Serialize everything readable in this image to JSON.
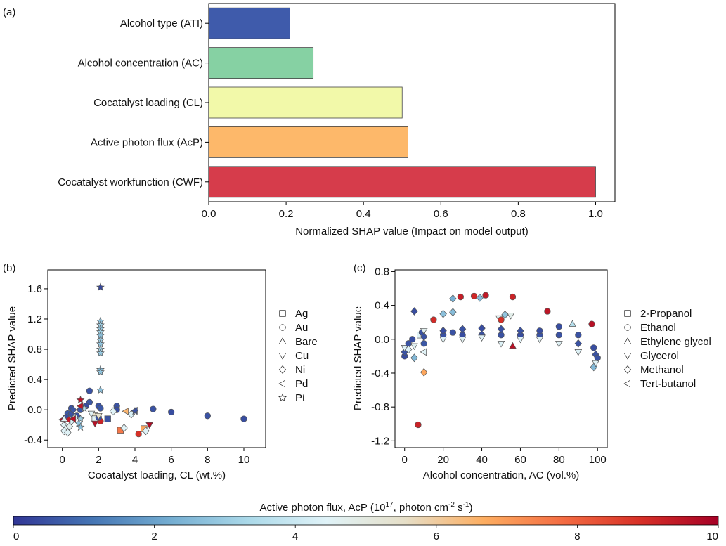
{
  "chart_data": [
    {
      "panel": "(a)",
      "type": "bar",
      "orientation": "horizontal",
      "categories": [
        "Alcohol type (ATI)",
        "Alcohol concentration (AC)",
        "Cocatalyst loading (CL)",
        "Active photon flux (AcP)",
        "Cocatalyst workfunction (CWF)"
      ],
      "values": [
        0.21,
        0.27,
        0.5,
        0.515,
        1.0
      ],
      "colors": [
        "#3f5bab",
        "#86d1a3",
        "#f2f9a9",
        "#fdb86a",
        "#d63c4b"
      ],
      "xlabel": "Normalized SHAP value (Impact on model output)",
      "ylabel": "",
      "xlim": [
        0,
        1.05
      ],
      "xticks": [
        "0.0",
        "0.2",
        "0.4",
        "0.6",
        "0.8",
        "1.0"
      ],
      "grid": false
    },
    {
      "panel": "(b)",
      "type": "scatter",
      "xlabel": "Cocatalyst loading, CL (wt.%)",
      "ylabel": "Predicted SHAP value",
      "xlim": [
        -0.8,
        11.2
      ],
      "ylim": [
        -0.5,
        1.85
      ],
      "xticks": [
        "0",
        "2",
        "4",
        "6",
        "8",
        "10"
      ],
      "yticks": [
        "-0.4",
        "0.0",
        "0.4",
        "0.8",
        "1.2",
        "1.6"
      ],
      "legend_placement": "outside-right",
      "legend": [
        {
          "label": "Ag",
          "shape": "square"
        },
        {
          "label": "Au",
          "shape": "circle"
        },
        {
          "label": "Bare",
          "shape": "triangle-up"
        },
        {
          "label": "Cu",
          "shape": "triangle-down"
        },
        {
          "label": "Ni",
          "shape": "diamond"
        },
        {
          "label": "Pd",
          "shape": "triangle-left"
        },
        {
          "label": "Pt",
          "shape": "star"
        }
      ],
      "points": [
        {
          "x": 2.1,
          "y": 1.62,
          "shape": "star",
          "acp": 0.3
        },
        {
          "x": 2.1,
          "y": 1.17,
          "shape": "star",
          "acp": 2.8
        },
        {
          "x": 2.1,
          "y": 1.12,
          "shape": "star",
          "acp": 3.0
        },
        {
          "x": 2.1,
          "y": 1.07,
          "shape": "star",
          "acp": 2.9
        },
        {
          "x": 2.1,
          "y": 1.03,
          "shape": "star",
          "acp": 3.1
        },
        {
          "x": 2.1,
          "y": 0.98,
          "shape": "star",
          "acp": 2.7
        },
        {
          "x": 2.1,
          "y": 0.92,
          "shape": "star",
          "acp": 3.0
        },
        {
          "x": 2.1,
          "y": 0.87,
          "shape": "star",
          "acp": 2.8
        },
        {
          "x": 2.1,
          "y": 0.8,
          "shape": "star",
          "acp": 3.2
        },
        {
          "x": 2.1,
          "y": 0.75,
          "shape": "star",
          "acp": 2.9
        },
        {
          "x": 2.1,
          "y": 0.53,
          "shape": "star",
          "acp": 2.6
        },
        {
          "x": 2.1,
          "y": 0.5,
          "shape": "star",
          "acp": 2.8
        },
        {
          "x": 2.1,
          "y": 0.26,
          "shape": "star",
          "acp": 2.7
        },
        {
          "x": 1.5,
          "y": 0.25,
          "shape": "circle",
          "acp": 0.5
        },
        {
          "x": 1.0,
          "y": 0.13,
          "shape": "star",
          "acp": 9.6
        },
        {
          "x": 1.5,
          "y": 0.1,
          "shape": "circle",
          "acp": 0.6
        },
        {
          "x": 1.3,
          "y": 0.05,
          "shape": "circle",
          "acp": 0.4
        },
        {
          "x": 2.0,
          "y": 0.05,
          "shape": "circle",
          "acp": 0.5
        },
        {
          "x": 2.1,
          "y": 0.02,
          "shape": "circle",
          "acp": 0.6
        },
        {
          "x": 3.0,
          "y": 0.05,
          "shape": "circle",
          "acp": 0.5
        },
        {
          "x": 3.0,
          "y": 0.0,
          "shape": "circle",
          "acp": 0.4
        },
        {
          "x": 5.0,
          "y": 0.01,
          "shape": "circle",
          "acp": 0.5
        },
        {
          "x": 6.0,
          "y": -0.03,
          "shape": "circle",
          "acp": 0.4
        },
        {
          "x": 8.0,
          "y": -0.08,
          "shape": "circle",
          "acp": 0.5
        },
        {
          "x": 10.0,
          "y": -0.12,
          "shape": "circle",
          "acp": 0.4
        },
        {
          "x": 0.5,
          "y": 0.02,
          "shape": "circle",
          "acp": 0.5
        },
        {
          "x": 0.3,
          "y": -0.05,
          "shape": "circle",
          "acp": 0.6
        },
        {
          "x": 0.2,
          "y": -0.1,
          "shape": "circle",
          "acp": 0.4
        },
        {
          "x": 0.8,
          "y": -0.08,
          "shape": "circle",
          "acp": 0.5
        },
        {
          "x": 1.0,
          "y": 0.0,
          "shape": "circle",
          "acp": 0.6
        },
        {
          "x": 0.1,
          "y": -0.2,
          "shape": "diamond",
          "acp": 4.5
        },
        {
          "x": 0.2,
          "y": -0.25,
          "shape": "diamond",
          "acp": 4.6
        },
        {
          "x": 0.1,
          "y": -0.28,
          "shape": "diamond",
          "acp": 4.4
        },
        {
          "x": 0.3,
          "y": -0.3,
          "shape": "diamond",
          "acp": 4.5
        },
        {
          "x": 0.4,
          "y": -0.22,
          "shape": "diamond",
          "acp": 4.7
        },
        {
          "x": 0.5,
          "y": -0.15,
          "shape": "diamond",
          "acp": 4.3
        },
        {
          "x": 0.5,
          "y": -0.05,
          "shape": "diamond",
          "acp": 0.5
        },
        {
          "x": 0.6,
          "y": 0.0,
          "shape": "diamond",
          "acp": 0.6
        },
        {
          "x": 0.7,
          "y": -0.1,
          "shape": "diamond",
          "acp": 4.5
        },
        {
          "x": 1.0,
          "y": -0.12,
          "shape": "star",
          "acp": 3.0
        },
        {
          "x": 0.9,
          "y": -0.18,
          "shape": "star",
          "acp": 2.8
        },
        {
          "x": 1.0,
          "y": -0.23,
          "shape": "star",
          "acp": 2.6
        },
        {
          "x": 1.2,
          "y": 0.02,
          "shape": "star",
          "acp": 3.5
        },
        {
          "x": 1.0,
          "y": 0.05,
          "shape": "triangle-left",
          "acp": 9.5
        },
        {
          "x": 0.6,
          "y": -0.12,
          "shape": "triangle-left",
          "acp": 9.6
        },
        {
          "x": 0.3,
          "y": -0.13,
          "shape": "triangle-left",
          "acp": 9.4
        },
        {
          "x": 0.0,
          "y": -0.13,
          "shape": "triangle-left",
          "acp": 9.7
        },
        {
          "x": 1.8,
          "y": -0.08,
          "shape": "square",
          "acp": 5.5
        },
        {
          "x": 1.8,
          "y": -0.12,
          "shape": "square",
          "acp": 4.5
        },
        {
          "x": 2.5,
          "y": -0.12,
          "shape": "square",
          "acp": 0.5
        },
        {
          "x": 3.2,
          "y": -0.27,
          "shape": "square",
          "acp": 7.6
        },
        {
          "x": 4.5,
          "y": -0.25,
          "shape": "square",
          "acp": 6.8
        },
        {
          "x": 2.1,
          "y": -0.15,
          "shape": "circle",
          "acp": 9.2
        },
        {
          "x": 2.0,
          "y": -0.1,
          "shape": "circle",
          "acp": 0.5
        },
        {
          "x": 4.2,
          "y": -0.32,
          "shape": "circle",
          "acp": 8.9
        },
        {
          "x": 1.8,
          "y": -0.18,
          "shape": "triangle-down",
          "acp": 9.6
        },
        {
          "x": 2.0,
          "y": -0.08,
          "shape": "triangle-down",
          "acp": 5.5
        },
        {
          "x": 1.6,
          "y": -0.05,
          "shape": "triangle-down",
          "acp": 4.5
        },
        {
          "x": 4.8,
          "y": -0.2,
          "shape": "triangle-down",
          "acp": 9.7
        },
        {
          "x": 3.5,
          "y": -0.02,
          "shape": "triangle-left",
          "acp": 6.5
        },
        {
          "x": 3.4,
          "y": -0.24,
          "shape": "diamond",
          "acp": 4.5
        },
        {
          "x": 4.6,
          "y": -0.28,
          "shape": "diamond",
          "acp": 4.4
        },
        {
          "x": 3.8,
          "y": -0.06,
          "shape": "diamond",
          "acp": 4.3
        },
        {
          "x": 2.8,
          "y": -0.02,
          "shape": "diamond",
          "acp": 4.5
        },
        {
          "x": 4.0,
          "y": -0.01,
          "shape": "triangle-left",
          "acp": 0.5
        },
        {
          "x": 4.0,
          "y": -0.02,
          "shape": "star",
          "acp": 0.5
        },
        {
          "x": 0.1,
          "y": -0.12,
          "shape": "triangle-up",
          "acp": 4.5
        }
      ]
    },
    {
      "panel": "(c)",
      "type": "scatter",
      "xlabel": "Alcohol concentration, AC (vol.%)",
      "ylabel": "Predicted SHAP value",
      "xlim": [
        -5,
        105
      ],
      "ylim": [
        -1.28,
        0.82
      ],
      "xticks": [
        "0",
        "20",
        "40",
        "60",
        "80",
        "100"
      ],
      "yticks": [
        "-1.2",
        "-0.8",
        "-0.4",
        "0.0",
        "0.4",
        "0.8"
      ],
      "legend_placement": "outside-right",
      "legend": [
        {
          "label": "2-Propanol",
          "shape": "square"
        },
        {
          "label": "Ethanol",
          "shape": "circle"
        },
        {
          "label": "Ethylene glycol",
          "shape": "triangle-up"
        },
        {
          "label": "Glycerol",
          "shape": "triangle-down"
        },
        {
          "label": "Methanol",
          "shape": "diamond"
        },
        {
          "label": "Tert-butanol",
          "shape": "triangle-left"
        }
      ],
      "points": [
        {
          "x": 7,
          "y": -1.01,
          "shape": "circle",
          "acp": 9.2
        },
        {
          "x": 10,
          "y": -0.39,
          "shape": "diamond",
          "acp": 6.8
        },
        {
          "x": 5,
          "y": 0.33,
          "shape": "diamond",
          "acp": 0.4
        },
        {
          "x": 5,
          "y": -0.22,
          "shape": "diamond",
          "acp": 2.5
        },
        {
          "x": 25,
          "y": 0.48,
          "shape": "diamond",
          "acp": 2.3
        },
        {
          "x": 29,
          "y": 0.5,
          "shape": "circle",
          "acp": 9.3
        },
        {
          "x": 36,
          "y": 0.51,
          "shape": "circle",
          "acp": 9.1
        },
        {
          "x": 39,
          "y": 0.49,
          "shape": "diamond",
          "acp": 2.6
        },
        {
          "x": 42,
          "y": 0.52,
          "shape": "circle",
          "acp": 9.4
        },
        {
          "x": 56,
          "y": 0.5,
          "shape": "circle",
          "acp": 9.2
        },
        {
          "x": 52,
          "y": 0.29,
          "shape": "diamond",
          "acp": 2.8
        },
        {
          "x": 55,
          "y": 0.28,
          "shape": "triangle-down",
          "acp": 4.8
        },
        {
          "x": 49,
          "y": 0.25,
          "shape": "triangle-down",
          "acp": 4.6
        },
        {
          "x": 50,
          "y": 0.23,
          "shape": "circle",
          "acp": 8.9
        },
        {
          "x": 74,
          "y": 0.33,
          "shape": "circle",
          "acp": 9.5
        },
        {
          "x": 87,
          "y": 0.18,
          "shape": "triangle-up",
          "acp": 3.5
        },
        {
          "x": 97,
          "y": 0.18,
          "shape": "circle",
          "acp": 9.6
        },
        {
          "x": 20,
          "y": 0.3,
          "shape": "diamond",
          "acp": 2.7
        },
        {
          "x": 25,
          "y": 0.32,
          "shape": "diamond",
          "acp": 2.6
        },
        {
          "x": 15,
          "y": 0.23,
          "shape": "circle",
          "acp": 9.0
        },
        {
          "x": 56,
          "y": -0.08,
          "shape": "triangle-up",
          "acp": 9.6
        },
        {
          "x": 98,
          "y": -0.33,
          "shape": "diamond",
          "acp": 2.5
        },
        {
          "x": 99,
          "y": -0.28,
          "shape": "triangle-down",
          "acp": 4.5
        },
        {
          "x": 0,
          "y": -0.2,
          "shape": "circle",
          "acp": 0.4
        },
        {
          "x": 0,
          "y": -0.15,
          "shape": "diamond",
          "acp": 0.5
        },
        {
          "x": 0,
          "y": -0.1,
          "shape": "triangle-down",
          "acp": 4.5
        },
        {
          "x": 2,
          "y": -0.05,
          "shape": "circle",
          "acp": 0.5
        },
        {
          "x": 2,
          "y": -0.12,
          "shape": "diamond",
          "acp": 4.4
        },
        {
          "x": 4,
          "y": 0.0,
          "shape": "circle",
          "acp": 0.4
        },
        {
          "x": 5,
          "y": -0.08,
          "shape": "triangle-down",
          "acp": 4.6
        },
        {
          "x": 8,
          "y": 0.05,
          "shape": "square",
          "acp": 4.5
        },
        {
          "x": 9,
          "y": 0.08,
          "shape": "circle",
          "acp": 0.5
        },
        {
          "x": 10,
          "y": 0.1,
          "shape": "triangle-down",
          "acp": 4.7
        },
        {
          "x": 10,
          "y": 0.03,
          "shape": "diamond",
          "acp": 0.5
        },
        {
          "x": 10,
          "y": -0.05,
          "shape": "circle",
          "acp": 0.6
        },
        {
          "x": 10,
          "y": -0.15,
          "shape": "triangle-left",
          "acp": 4.5
        },
        {
          "x": 20,
          "y": 0.05,
          "shape": "circle",
          "acp": 0.5
        },
        {
          "x": 20,
          "y": 0.1,
          "shape": "diamond",
          "acp": 0.4
        },
        {
          "x": 20,
          "y": 0.0,
          "shape": "triangle-down",
          "acp": 4.5
        },
        {
          "x": 25,
          "y": 0.08,
          "shape": "circle",
          "acp": 0.5
        },
        {
          "x": 30,
          "y": 0.05,
          "shape": "circle",
          "acp": 0.4
        },
        {
          "x": 30,
          "y": 0.12,
          "shape": "diamond",
          "acp": 0.5
        },
        {
          "x": 30,
          "y": 0.0,
          "shape": "triangle-down",
          "acp": 4.6
        },
        {
          "x": 40,
          "y": 0.05,
          "shape": "circle",
          "acp": 0.5
        },
        {
          "x": 40,
          "y": 0.13,
          "shape": "diamond",
          "acp": 0.4
        },
        {
          "x": 40,
          "y": 0.02,
          "shape": "triangle-down",
          "acp": 4.5
        },
        {
          "x": 50,
          "y": 0.05,
          "shape": "circle",
          "acp": 0.5
        },
        {
          "x": 50,
          "y": 0.12,
          "shape": "diamond",
          "acp": 0.5
        },
        {
          "x": 50,
          "y": -0.05,
          "shape": "triangle-down",
          "acp": 4.4
        },
        {
          "x": 60,
          "y": 0.05,
          "shape": "circle",
          "acp": 0.4
        },
        {
          "x": 60,
          "y": 0.1,
          "shape": "diamond",
          "acp": 0.5
        },
        {
          "x": 60,
          "y": 0.0,
          "shape": "triangle-down",
          "acp": 4.5
        },
        {
          "x": 70,
          "y": 0.05,
          "shape": "circle",
          "acp": 0.5
        },
        {
          "x": 70,
          "y": 0.1,
          "shape": "circle",
          "acp": 0.4
        },
        {
          "x": 70,
          "y": 0.0,
          "shape": "triangle-down",
          "acp": 4.6
        },
        {
          "x": 80,
          "y": 0.05,
          "shape": "circle",
          "acp": 0.5
        },
        {
          "x": 80,
          "y": 0.15,
          "shape": "circle",
          "acp": 0.4
        },
        {
          "x": 80,
          "y": -0.05,
          "shape": "triangle-down",
          "acp": 4.5
        },
        {
          "x": 90,
          "y": 0.05,
          "shape": "circle",
          "acp": 0.5
        },
        {
          "x": 90,
          "y": -0.05,
          "shape": "diamond",
          "acp": 0.5
        },
        {
          "x": 90,
          "y": -0.15,
          "shape": "triangle-down",
          "acp": 4.4
        },
        {
          "x": 98,
          "y": -0.1,
          "shape": "circle",
          "acp": 0.4
        },
        {
          "x": 99,
          "y": -0.18,
          "shape": "diamond",
          "acp": 0.5
        },
        {
          "x": 100,
          "y": -0.22,
          "shape": "circle",
          "acp": 0.5
        }
      ]
    }
  ],
  "panel_labels": {
    "a": "(a)",
    "b": "(b)",
    "c": "(c)"
  },
  "colorbar": {
    "label_prefix": "Active photon flux, AcP (10",
    "label_exp1": "17",
    "label_mid": ", photon cm",
    "label_exp2": "-2",
    "label_mid2": " s",
    "label_exp3": "-1",
    "label_suffix": ")",
    "min": 0,
    "max": 10,
    "ticks": [
      "0",
      "2",
      "4",
      "6",
      "8",
      "10"
    ],
    "colormap": [
      "#313695",
      "#4575b4",
      "#74add1",
      "#abd9e9",
      "#e0f3f8",
      "#e6dfc8",
      "#fdae61",
      "#f46d43",
      "#d73027",
      "#a50026"
    ]
  }
}
